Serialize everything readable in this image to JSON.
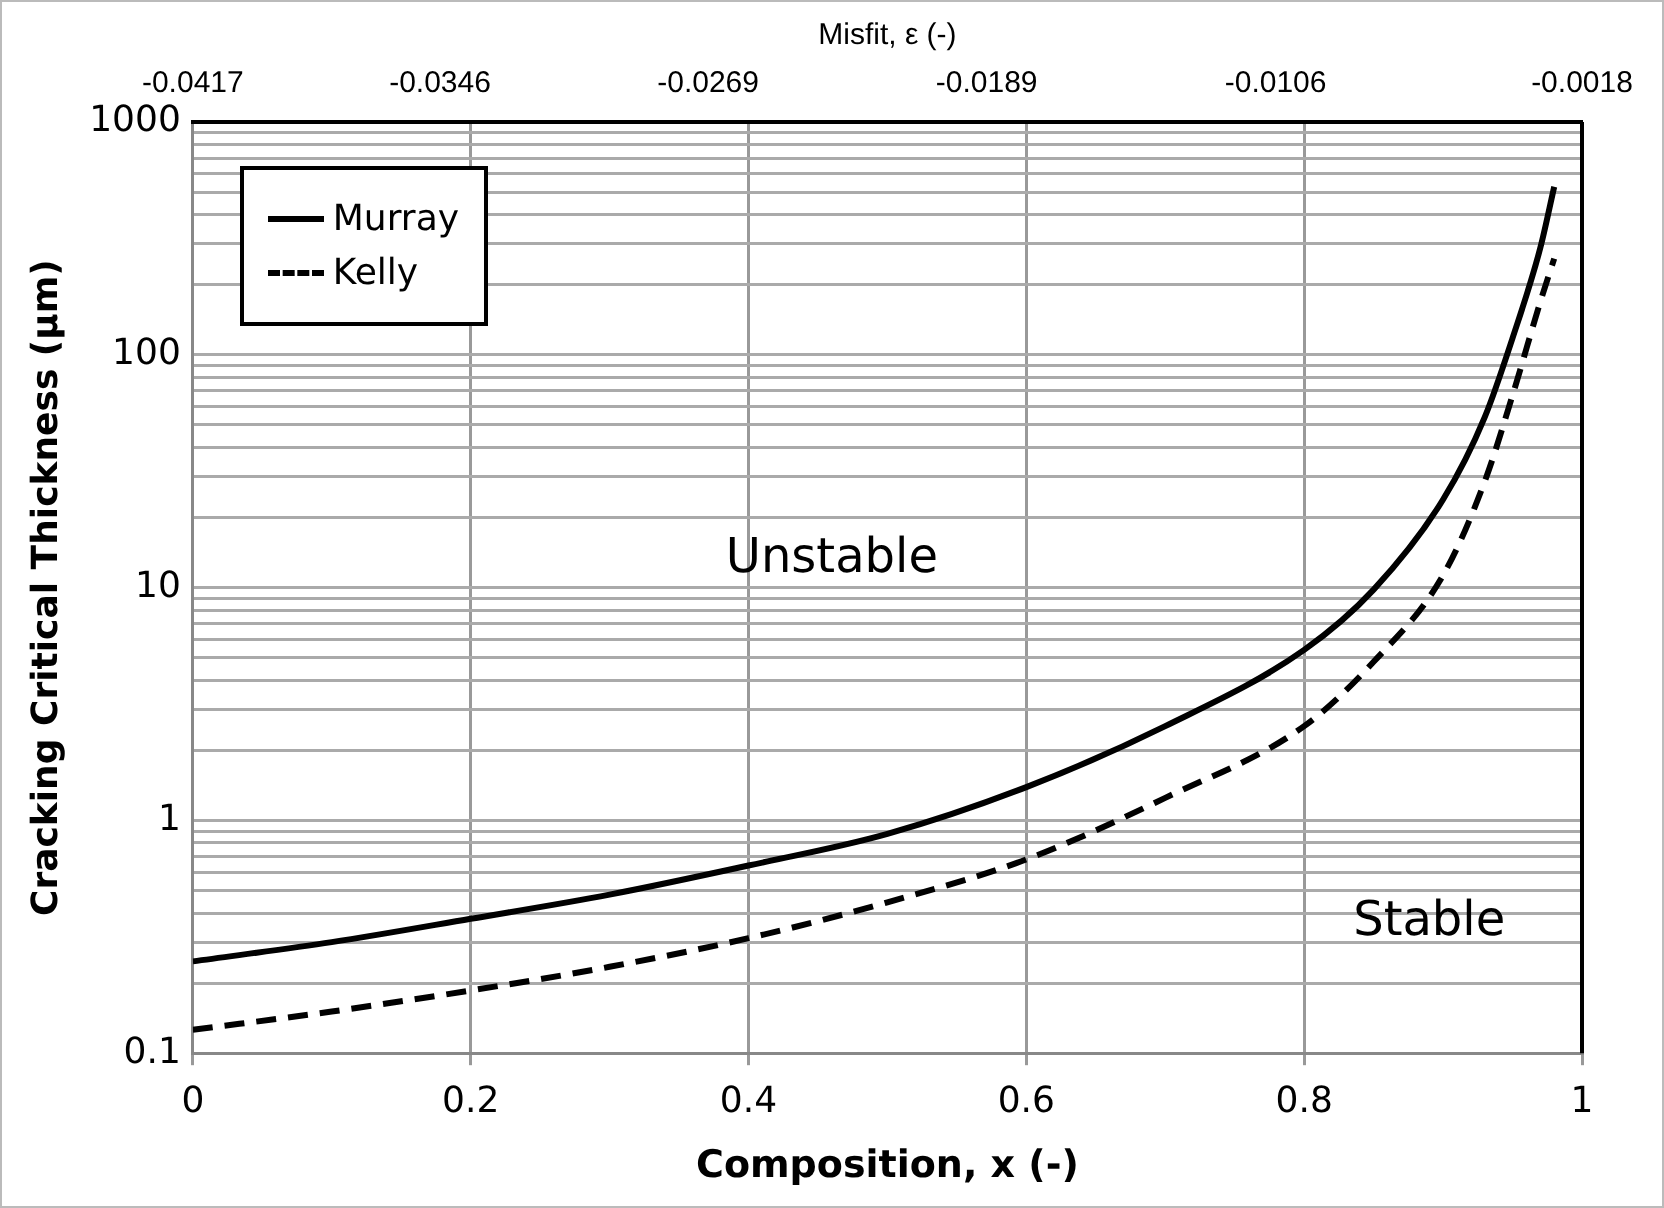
{
  "chart_data": {
    "type": "line",
    "xlabel": "Composition, x (-)",
    "ylabel": "Cracking Critical Thickness (µm)",
    "x2label": "Misfit, ε (-)",
    "x": [
      0,
      0.1,
      0.2,
      0.3,
      0.4,
      0.5,
      0.6,
      0.7,
      0.8,
      0.85,
      0.9,
      0.93,
      0.95,
      0.97,
      0.98
    ],
    "series": [
      {
        "name": "Murray",
        "color": "#000000",
        "line_style": "solid",
        "values": [
          0.248,
          0.3,
          0.378,
          0.48,
          0.64,
          0.875,
          1.39,
          2.54,
          5.4,
          9.8,
          23.9,
          54,
          118,
          288,
          527
        ]
      },
      {
        "name": "Kelly",
        "color": "#000000",
        "line_style": "dashed",
        "values": [
          0.126,
          0.151,
          0.186,
          0.235,
          0.312,
          0.445,
          0.68,
          1.25,
          2.54,
          4.8,
          11.3,
          28.6,
          67,
          169,
          259
        ]
      }
    ],
    "xlim": [
      0,
      1
    ],
    "xticks": [
      0,
      0.2,
      0.4,
      0.6,
      0.8,
      1
    ],
    "x2lim": [
      -0.0417,
      -0.0018
    ],
    "x2ticks": [
      -0.0417,
      -0.0346,
      -0.0269,
      -0.0189,
      -0.0106,
      -0.0018
    ],
    "ylim": [
      0.1,
      1000
    ],
    "log": "y",
    "yticks": [
      0.1,
      {
        "value": 0.2,
        "label": null
      },
      {
        "value": 0.3,
        "label": null
      },
      {
        "value": 0.4,
        "label": null
      },
      {
        "value": 0.5,
        "label": null
      },
      {
        "value": 0.6,
        "label": null
      },
      {
        "value": 0.7,
        "label": null
      },
      {
        "value": 0.8,
        "label": null
      },
      {
        "value": 0.9,
        "label": null
      },
      1,
      {
        "value": 2,
        "label": null
      },
      {
        "value": 3,
        "label": null
      },
      {
        "value": 4,
        "label": null
      },
      {
        "value": 5,
        "label": null
      },
      {
        "value": 6,
        "label": null
      },
      {
        "value": 7,
        "label": null
      },
      {
        "value": 8,
        "label": null
      },
      {
        "value": 9,
        "label": null
      },
      10,
      {
        "value": 20,
        "label": null
      },
      {
        "value": 30,
        "label": null
      },
      {
        "value": 40,
        "label": null
      },
      {
        "value": 50,
        "label": null
      },
      {
        "value": 60,
        "label": null
      },
      {
        "value": 70,
        "label": null
      },
      {
        "value": 80,
        "label": null
      },
      {
        "value": 90,
        "label": null
      },
      100,
      {
        "value": 200,
        "label": null
      },
      {
        "value": 300,
        "label": null
      },
      {
        "value": 400,
        "label": null
      },
      {
        "value": 500,
        "label": null
      },
      {
        "value": 600,
        "label": null
      },
      {
        "value": 700,
        "label": null
      },
      {
        "value": 800,
        "label": null
      },
      {
        "value": 900,
        "label": null
      },
      1000
    ],
    "grid": true,
    "legend": "top left",
    "marker": "none",
    "annotations": [
      "Unstable",
      "Stable"
    ]
  }
}
